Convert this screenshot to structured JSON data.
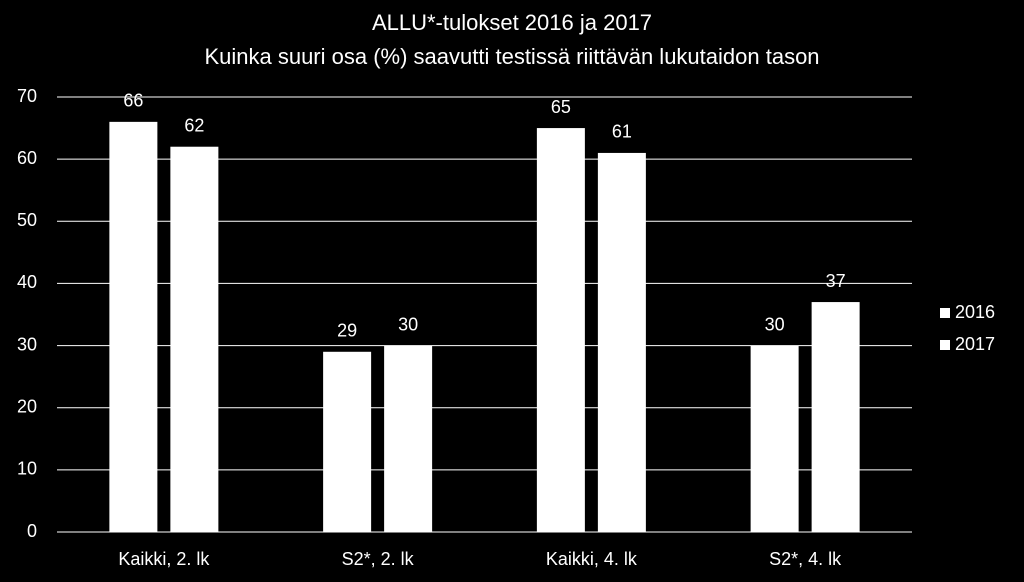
{
  "chart_data": {
    "type": "bar",
    "title": "ALLU*-tulokset 2016 ja 2017",
    "subtitle": "Kuinka suuri osa (%) saavutti testissä riittävän lukutaidon tason",
    "categories": [
      "Kaikki, 2. lk",
      "S2*, 2. lk",
      "Kaikki, 4. lk",
      "S2*, 4. lk"
    ],
    "series": [
      {
        "name": "2016",
        "color": "#ffffff",
        "values": [
          66,
          29,
          65,
          30
        ]
      },
      {
        "name": "2017",
        "color": "#ffffff",
        "values": [
          62,
          30,
          61,
          37
        ]
      }
    ],
    "ylim": [
      0,
      70
    ],
    "yticks": [
      0,
      10,
      20,
      30,
      40,
      50,
      60,
      70
    ],
    "grid": true,
    "legend": "right"
  }
}
